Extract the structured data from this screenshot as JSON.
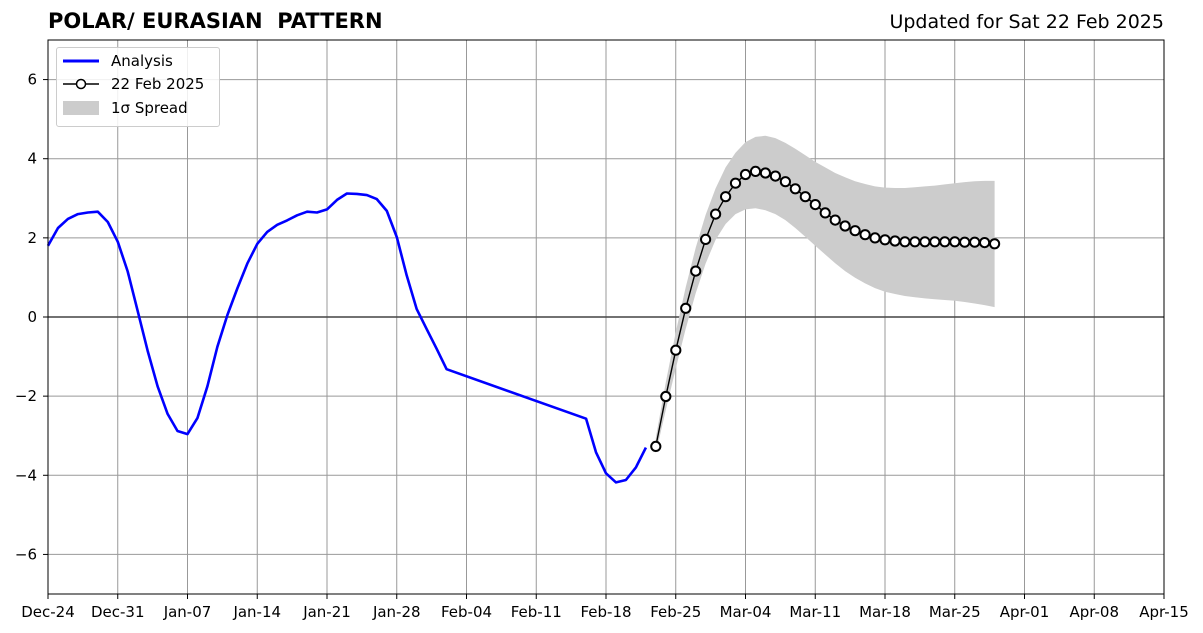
{
  "header": {
    "title": "POLAR/ EURASIAN  PATTERN",
    "updated": "Updated for Sat 22 Feb 2025"
  },
  "legend": {
    "analysis": "Analysis",
    "forecast": "22 Feb 2025",
    "spread": "1σ Spread"
  },
  "colors": {
    "analysis": "#0000ff",
    "forecast_line": "#000000",
    "marker_fill": "#ffffff",
    "spread": "#cccccc",
    "grid": "#999999"
  },
  "chart_data": {
    "type": "line",
    "title": "POLAR/ EURASIAN  PATTERN",
    "xlabel": "",
    "ylabel": "",
    "xlim": [
      "2024-12-24",
      "2025-04-15"
    ],
    "ylim": [
      -7,
      7
    ],
    "x_ticks": [
      "Dec-24",
      "Dec-31",
      "Jan-07",
      "Jan-14",
      "Jan-21",
      "Jan-28",
      "Feb-04",
      "Feb-11",
      "Feb-18",
      "Feb-25",
      "Mar-04",
      "Mar-11",
      "Mar-18",
      "Mar-25",
      "Apr-01",
      "Apr-08",
      "Apr-15"
    ],
    "y_ticks": [
      -6,
      -4,
      -2,
      0,
      2,
      4,
      6
    ],
    "y_tick_labels": [
      "−6",
      "−4",
      "−2",
      "0",
      "2",
      "4",
      "6"
    ],
    "grid": true,
    "legend_position": "top-left",
    "analysis": {
      "name": "Analysis",
      "x": [
        "2024-12-24",
        "2024-12-25",
        "2024-12-26",
        "2024-12-27",
        "2024-12-28",
        "2024-12-29",
        "2024-12-30",
        "2024-12-31",
        "2025-01-01",
        "2025-01-02",
        "2025-01-03",
        "2025-01-04",
        "2025-01-05",
        "2025-01-06",
        "2025-01-07",
        "2025-01-08",
        "2025-01-09",
        "2025-01-10",
        "2025-01-11",
        "2025-01-12",
        "2025-01-13",
        "2025-01-14",
        "2025-01-15",
        "2025-01-16",
        "2025-01-17",
        "2025-01-18",
        "2025-01-19",
        "2025-01-20",
        "2025-01-21",
        "2025-01-22",
        "2025-01-23",
        "2025-01-24",
        "2025-01-25",
        "2025-01-26",
        "2025-01-27",
        "2025-01-28",
        "2025-01-29",
        "2025-01-30",
        "2025-01-31",
        "2025-02-01",
        "2025-02-02",
        "2025-02-16",
        "2025-02-17",
        "2025-02-18",
        "2025-02-19",
        "2025-02-20",
        "2025-02-21",
        "2025-02-22"
      ],
      "y": [
        1.8,
        2.25,
        2.48,
        2.6,
        2.64,
        2.66,
        2.4,
        1.9,
        1.15,
        0.15,
        -0.85,
        -1.75,
        -2.45,
        -2.88,
        -2.96,
        -2.55,
        -1.75,
        -0.75,
        0.05,
        0.72,
        1.35,
        1.85,
        2.15,
        2.33,
        2.44,
        2.57,
        2.66,
        2.64,
        2.72,
        2.96,
        3.12,
        3.11,
        3.08,
        2.98,
        2.68,
        2.02,
        1.05,
        0.2,
        -0.3,
        -0.8,
        -1.32,
        -2.57,
        -3.42,
        -3.95,
        -4.18,
        -4.12,
        -3.8,
        -3.3
      ]
    },
    "forecast": {
      "name": "22 Feb 2025",
      "x": [
        "2025-02-23",
        "2025-02-24",
        "2025-02-25",
        "2025-02-26",
        "2025-02-27",
        "2025-02-28",
        "2025-03-01",
        "2025-03-02",
        "2025-03-03",
        "2025-03-04",
        "2025-03-05",
        "2025-03-06",
        "2025-03-07",
        "2025-03-08",
        "2025-03-09",
        "2025-03-10",
        "2025-03-11",
        "2025-03-12",
        "2025-03-13",
        "2025-03-14",
        "2025-03-15",
        "2025-03-16",
        "2025-03-17",
        "2025-03-18",
        "2025-03-19",
        "2025-03-20",
        "2025-03-21",
        "2025-03-22",
        "2025-03-23",
        "2025-03-24",
        "2025-03-25",
        "2025-03-26",
        "2025-03-27",
        "2025-03-28",
        "2025-03-29"
      ],
      "y": [
        -3.27,
        -2.01,
        -0.84,
        0.22,
        1.16,
        1.96,
        2.6,
        3.04,
        3.38,
        3.6,
        3.68,
        3.64,
        3.56,
        3.42,
        3.24,
        3.04,
        2.84,
        2.63,
        2.45,
        2.3,
        2.18,
        2.08,
        2.0,
        1.95,
        1.92,
        1.9,
        1.9,
        1.9,
        1.9,
        1.9,
        1.9,
        1.89,
        1.89,
        1.88,
        1.85
      ]
    },
    "spread": {
      "name": "1σ Spread",
      "x": [
        "2025-02-23",
        "2025-02-24",
        "2025-02-25",
        "2025-02-26",
        "2025-02-27",
        "2025-02-28",
        "2025-03-01",
        "2025-03-02",
        "2025-03-03",
        "2025-03-04",
        "2025-03-05",
        "2025-03-06",
        "2025-03-07",
        "2025-03-08",
        "2025-03-09",
        "2025-03-10",
        "2025-03-11",
        "2025-03-12",
        "2025-03-13",
        "2025-03-14",
        "2025-03-15",
        "2025-03-16",
        "2025-03-17",
        "2025-03-18",
        "2025-03-19",
        "2025-03-20",
        "2025-03-21",
        "2025-03-22",
        "2025-03-23",
        "2025-03-24",
        "2025-03-25",
        "2025-03-26",
        "2025-03-27",
        "2025-03-28",
        "2025-03-29"
      ],
      "lower": [
        -3.45,
        -2.35,
        -1.3,
        -0.3,
        0.6,
        1.35,
        1.95,
        2.35,
        2.6,
        2.72,
        2.75,
        2.7,
        2.6,
        2.45,
        2.25,
        2.03,
        1.8,
        1.58,
        1.36,
        1.16,
        0.99,
        0.85,
        0.73,
        0.64,
        0.58,
        0.53,
        0.5,
        0.47,
        0.45,
        0.43,
        0.41,
        0.38,
        0.34,
        0.3,
        0.25
      ],
      "upper": [
        -3.05,
        -1.65,
        -0.38,
        0.75,
        1.75,
        2.58,
        3.25,
        3.78,
        4.15,
        4.42,
        4.55,
        4.58,
        4.52,
        4.4,
        4.25,
        4.09,
        3.92,
        3.78,
        3.64,
        3.53,
        3.43,
        3.36,
        3.3,
        3.27,
        3.26,
        3.26,
        3.28,
        3.3,
        3.32,
        3.35,
        3.38,
        3.41,
        3.43,
        3.44,
        3.44
      ]
    }
  }
}
